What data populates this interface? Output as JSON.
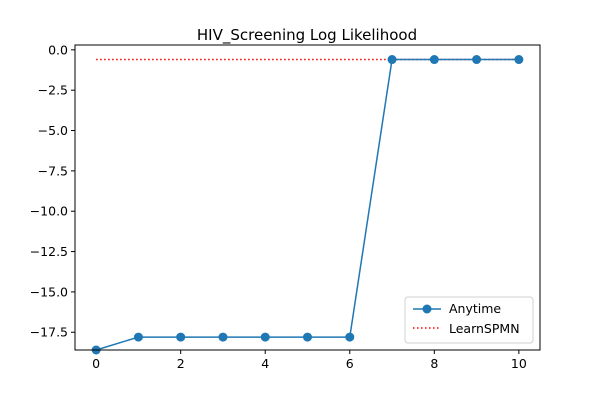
{
  "chart_data": {
    "type": "line",
    "title": "HIV_Screening Log Likelihood",
    "xlabel": "",
    "ylabel": "",
    "xlim": [
      -0.5,
      10.5
    ],
    "ylim": [
      -18.6,
      0.3
    ],
    "xticks": [
      0,
      2,
      4,
      6,
      8,
      10
    ],
    "yticks": [
      0.0,
      -2.5,
      -5.0,
      -7.5,
      -10.0,
      -12.5,
      -15.0,
      -17.5
    ],
    "xtick_labels": [
      "0",
      "2",
      "4",
      "6",
      "8",
      "10"
    ],
    "ytick_labels": [
      "0.0",
      "−2.5",
      "−5.0",
      "−7.5",
      "−10.0",
      "−12.5",
      "−15.0",
      "−17.5"
    ],
    "grid": false,
    "legend_position": "lower-right",
    "series": [
      {
        "name": "Anytime",
        "style": "solid-line-circle-markers",
        "color": "#1f77b4",
        "x": [
          0,
          1,
          2,
          3,
          4,
          5,
          6,
          7,
          8,
          9,
          10
        ],
        "y": [
          -18.6,
          -17.8,
          -17.8,
          -17.8,
          -17.8,
          -17.8,
          -17.8,
          -0.6,
          -0.6,
          -0.6,
          -0.6
        ]
      },
      {
        "name": "LearnSPMN",
        "style": "dotted-line",
        "color": "#ff0000",
        "x": [
          0,
          10
        ],
        "y": [
          -0.6,
          -0.6
        ]
      }
    ]
  }
}
